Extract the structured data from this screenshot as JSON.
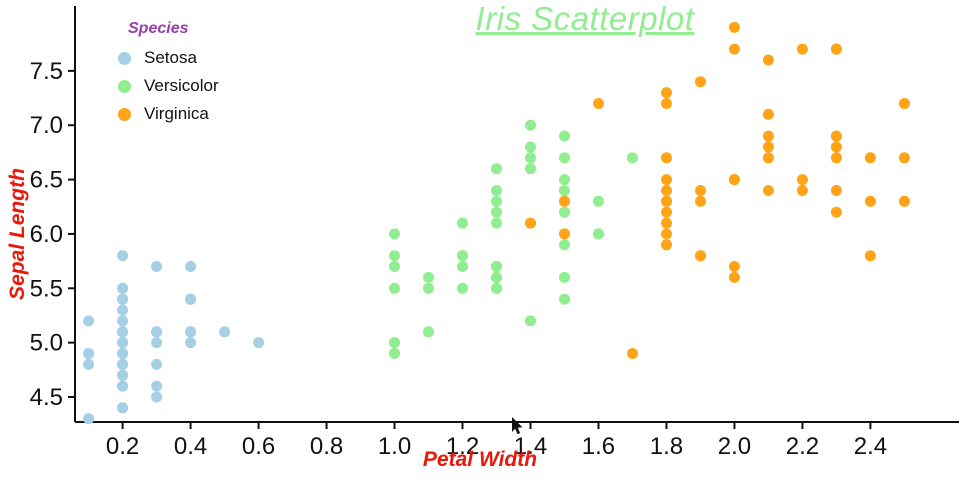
{
  "title": "Iris Scatterplot",
  "legend": {
    "title": "Species",
    "title_color": "#9c3bad",
    "items": [
      {
        "label": "Setosa",
        "color": "#a5cfe4"
      },
      {
        "label": "Versicolor",
        "color": "#90ee90"
      },
      {
        "label": "Virginica",
        "color": "#ffa417"
      }
    ]
  },
  "colors": {
    "title": "#90ee90",
    "axis_label": "#e8190a",
    "axis_line": "#111111",
    "tick_text": "#111111"
  },
  "chart_data": {
    "type": "scatter",
    "title": "Iris Scatterplot",
    "xlabel": "Petal Width",
    "ylabel": "Sepal Length",
    "xlim": [
      0.06,
      2.64
    ],
    "ylim": [
      4.27,
      8.06
    ],
    "xticks": [
      0.2,
      0.4,
      0.6,
      0.8,
      1.0,
      1.2,
      1.4,
      1.6,
      1.8,
      2.0,
      2.2,
      2.4
    ],
    "yticks": [
      4.5,
      5.0,
      5.5,
      6.0,
      6.5,
      7.0,
      7.5
    ],
    "grid": false,
    "legend_position": "top-left",
    "series": [
      {
        "name": "Setosa",
        "color": "#a5cfe4",
        "points": [
          [
            0.2,
            5.1
          ],
          [
            0.2,
            4.9
          ],
          [
            0.2,
            4.7
          ],
          [
            0.2,
            4.6
          ],
          [
            0.2,
            5.0
          ],
          [
            0.4,
            5.4
          ],
          [
            0.3,
            4.6
          ],
          [
            0.2,
            5.0
          ],
          [
            0.2,
            4.4
          ],
          [
            0.1,
            4.9
          ],
          [
            0.2,
            5.4
          ],
          [
            0.2,
            4.8
          ],
          [
            0.1,
            4.8
          ],
          [
            0.1,
            4.3
          ],
          [
            0.2,
            5.8
          ],
          [
            0.4,
            5.7
          ],
          [
            0.4,
            5.4
          ],
          [
            0.3,
            5.1
          ],
          [
            0.3,
            5.7
          ],
          [
            0.3,
            5.1
          ],
          [
            0.2,
            5.4
          ],
          [
            0.4,
            5.1
          ],
          [
            0.2,
            4.6
          ],
          [
            0.5,
            5.1
          ],
          [
            0.2,
            4.8
          ],
          [
            0.2,
            5.0
          ],
          [
            0.4,
            5.0
          ],
          [
            0.2,
            5.2
          ],
          [
            0.2,
            5.2
          ],
          [
            0.2,
            4.7
          ],
          [
            0.2,
            4.8
          ],
          [
            0.4,
            5.4
          ],
          [
            0.1,
            5.2
          ],
          [
            0.2,
            5.5
          ],
          [
            0.2,
            4.9
          ],
          [
            0.2,
            5.0
          ],
          [
            0.2,
            5.5
          ],
          [
            0.1,
            4.9
          ],
          [
            0.2,
            4.4
          ],
          [
            0.2,
            5.1
          ],
          [
            0.3,
            5.0
          ],
          [
            0.3,
            4.5
          ],
          [
            0.2,
            4.4
          ],
          [
            0.6,
            5.0
          ],
          [
            0.4,
            5.1
          ],
          [
            0.3,
            4.8
          ],
          [
            0.2,
            5.1
          ],
          [
            0.2,
            4.6
          ],
          [
            0.2,
            5.3
          ],
          [
            0.2,
            5.0
          ]
        ]
      },
      {
        "name": "Versicolor",
        "color": "#90ee90",
        "points": [
          [
            1.4,
            7.0
          ],
          [
            1.5,
            6.4
          ],
          [
            1.5,
            6.9
          ],
          [
            1.3,
            5.5
          ],
          [
            1.5,
            6.5
          ],
          [
            1.3,
            5.7
          ],
          [
            1.6,
            6.3
          ],
          [
            1.0,
            4.9
          ],
          [
            1.3,
            6.6
          ],
          [
            1.4,
            5.2
          ],
          [
            1.0,
            5.0
          ],
          [
            1.5,
            5.9
          ],
          [
            1.0,
            6.0
          ],
          [
            1.4,
            6.1
          ],
          [
            1.3,
            5.6
          ],
          [
            1.4,
            6.7
          ],
          [
            1.5,
            5.6
          ],
          [
            1.0,
            5.8
          ],
          [
            1.5,
            6.2
          ],
          [
            1.1,
            5.6
          ],
          [
            1.8,
            5.9
          ],
          [
            1.3,
            6.1
          ],
          [
            1.5,
            6.3
          ],
          [
            1.2,
            6.1
          ],
          [
            1.3,
            6.4
          ],
          [
            1.4,
            6.6
          ],
          [
            1.4,
            6.8
          ],
          [
            1.7,
            6.7
          ],
          [
            1.5,
            6.0
          ],
          [
            1.0,
            5.7
          ],
          [
            1.1,
            5.5
          ],
          [
            1.0,
            5.5
          ],
          [
            1.2,
            5.8
          ],
          [
            1.6,
            6.0
          ],
          [
            1.5,
            5.4
          ],
          [
            1.6,
            6.0
          ],
          [
            1.5,
            6.7
          ],
          [
            1.3,
            6.3
          ],
          [
            1.3,
            5.6
          ],
          [
            1.3,
            5.5
          ],
          [
            1.2,
            5.5
          ],
          [
            1.4,
            6.1
          ],
          [
            1.2,
            5.8
          ],
          [
            1.0,
            5.0
          ],
          [
            1.3,
            5.6
          ],
          [
            1.2,
            5.7
          ],
          [
            1.3,
            5.7
          ],
          [
            1.3,
            6.2
          ],
          [
            1.1,
            5.1
          ],
          [
            1.3,
            5.7
          ]
        ]
      },
      {
        "name": "Virginica",
        "color": "#ffa417",
        "points": [
          [
            2.5,
            6.3
          ],
          [
            1.9,
            5.8
          ],
          [
            2.1,
            7.1
          ],
          [
            1.8,
            6.3
          ],
          [
            2.2,
            6.5
          ],
          [
            2.1,
            7.6
          ],
          [
            1.7,
            4.9
          ],
          [
            1.8,
            7.3
          ],
          [
            1.8,
            6.7
          ],
          [
            2.5,
            7.2
          ],
          [
            2.0,
            6.5
          ],
          [
            1.9,
            6.4
          ],
          [
            2.1,
            6.8
          ],
          [
            2.0,
            5.7
          ],
          [
            2.4,
            5.8
          ],
          [
            2.3,
            6.4
          ],
          [
            1.8,
            6.5
          ],
          [
            2.2,
            7.7
          ],
          [
            2.3,
            7.7
          ],
          [
            1.5,
            6.0
          ],
          [
            2.3,
            6.9
          ],
          [
            2.0,
            5.6
          ],
          [
            2.0,
            7.7
          ],
          [
            1.8,
            6.3
          ],
          [
            2.1,
            6.7
          ],
          [
            1.8,
            7.2
          ],
          [
            1.8,
            6.2
          ],
          [
            1.8,
            6.1
          ],
          [
            2.1,
            6.4
          ],
          [
            1.6,
            7.2
          ],
          [
            1.9,
            7.4
          ],
          [
            2.0,
            7.9
          ],
          [
            2.2,
            6.4
          ],
          [
            1.5,
            6.3
          ],
          [
            1.4,
            6.1
          ],
          [
            2.3,
            7.7
          ],
          [
            2.4,
            6.3
          ],
          [
            1.8,
            6.4
          ],
          [
            1.8,
            6.0
          ],
          [
            2.1,
            6.9
          ],
          [
            2.4,
            6.7
          ],
          [
            2.3,
            6.9
          ],
          [
            1.9,
            5.8
          ],
          [
            2.3,
            6.8
          ],
          [
            2.5,
            6.7
          ],
          [
            2.3,
            6.7
          ],
          [
            1.9,
            6.3
          ],
          [
            2.0,
            6.5
          ],
          [
            2.3,
            6.2
          ],
          [
            1.8,
            5.9
          ]
        ]
      }
    ]
  }
}
